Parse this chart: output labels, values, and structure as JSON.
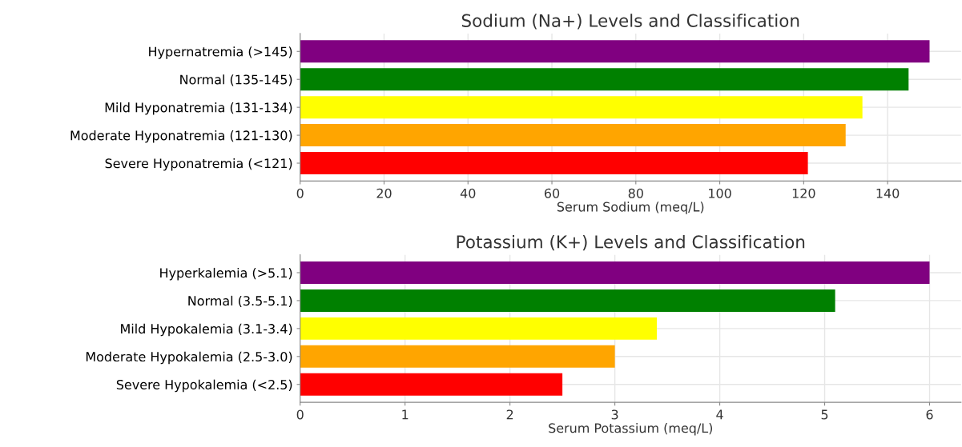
{
  "chart_data": [
    {
      "type": "bar",
      "orientation": "horizontal",
      "title": "Sodium (Na+) Levels and Classification",
      "xlabel": "Serum Sodium (meq/L)",
      "categories": [
        "Hypernatremia (>145)",
        "Normal (135-145)",
        "Mild Hyponatremia (131-134)",
        "Moderate Hyponatremia (121-130)",
        "Severe Hyponatremia (<121)"
      ],
      "values": [
        150,
        145,
        134,
        130,
        121
      ],
      "colors": [
        "#800080",
        "#008000",
        "#ffff00",
        "#ffa500",
        "#ff0000"
      ],
      "xlim": [
        0,
        157.5
      ],
      "xticks": [
        0,
        20,
        40,
        60,
        80,
        100,
        120,
        140
      ],
      "grid": true
    },
    {
      "type": "bar",
      "orientation": "horizontal",
      "title": "Potassium (K+) Levels and Classification",
      "xlabel": "Serum Potassium (meq/L)",
      "categories": [
        "Hyperkalemia (>5.1)",
        "Normal (3.5-5.1)",
        "Mild Hypokalemia (3.1-3.4)",
        "Moderate Hypokalemia (2.5-3.0)",
        "Severe Hypokalemia (<2.5)"
      ],
      "values": [
        6,
        5.1,
        3.4,
        3.0,
        2.5
      ],
      "colors": [
        "#800080",
        "#008000",
        "#ffff00",
        "#ffa500",
        "#ff0000"
      ],
      "xlim": [
        0,
        6.3
      ],
      "xticks": [
        0,
        1,
        2,
        3,
        4,
        5,
        6
      ],
      "grid": true
    }
  ]
}
